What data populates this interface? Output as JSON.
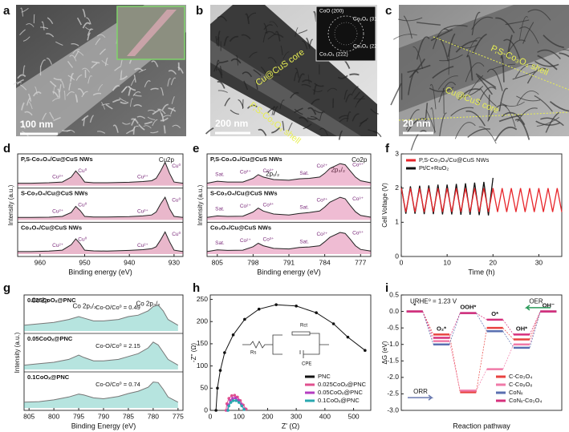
{
  "panels": [
    {
      "label": "a",
      "scale_bar": "100 nm"
    },
    {
      "label": "b",
      "scale_bar": "200 nm",
      "annotations": [
        "Cu@CuS core",
        "P,S-Co₃O₄ shell"
      ],
      "saed": [
        "CoO (200)",
        "Co₃O₄ (311)",
        "Co₃O₄ (220)",
        "Co₃O₄ (222)"
      ]
    },
    {
      "label": "c",
      "scale_bar": "20 nm",
      "annotations": [
        "P,S-Co₃O₄ shell",
        "Cu@CuS core"
      ]
    }
  ],
  "chart_data": [
    {
      "type": "spectra",
      "label": "d",
      "xlabel": "Binding energy (eV)",
      "ylabel": "Intensity (a.u.)",
      "xlim": [
        965,
        928
      ],
      "xticks": [
        960,
        950,
        940,
        930
      ],
      "ylim": [
        0,
        1
      ],
      "line_color": "#222222",
      "annotations": [
        "Cu2p"
      ],
      "x": [
        965,
        962,
        958,
        955,
        953,
        952,
        951,
        950,
        948,
        945,
        940,
        937,
        935,
        934,
        933,
        932,
        931,
        930,
        928
      ],
      "series": [
        {
          "name": "P,S-Co₃O₄/Cu@CuS NWs",
          "color": "#c0306a",
          "labels": [
            "Cu²⁺",
            "Cu⁰",
            "Cu²⁺",
            "Cu⁰"
          ],
          "values": [
            0.1,
            0.1,
            0.12,
            0.15,
            0.35,
            0.6,
            0.4,
            0.15,
            0.12,
            0.12,
            0.14,
            0.17,
            0.2,
            0.3,
            0.6,
            0.95,
            0.5,
            0.15,
            0.1
          ]
        },
        {
          "name": "S-Co₃O₄/Cu@CuS NWs",
          "color": "#c0306a",
          "labels": [
            "Cu²⁺",
            "Cu⁰",
            "Cu²⁺",
            "Cu⁰"
          ],
          "values": [
            0.1,
            0.1,
            0.11,
            0.14,
            0.3,
            0.55,
            0.38,
            0.14,
            0.12,
            0.12,
            0.13,
            0.16,
            0.2,
            0.32,
            0.65,
            0.92,
            0.45,
            0.14,
            0.1
          ]
        },
        {
          "name": "Co₃O₄/Cu@CuS NWs",
          "color": "#c0306a",
          "labels": [
            "Cu²⁺",
            "Cu⁰",
            "Cu²⁺",
            "Cu⁰"
          ],
          "values": [
            0.1,
            0.1,
            0.12,
            0.16,
            0.38,
            0.62,
            0.42,
            0.16,
            0.13,
            0.12,
            0.15,
            0.18,
            0.22,
            0.3,
            0.58,
            0.9,
            0.5,
            0.16,
            0.1
          ]
        }
      ]
    },
    {
      "type": "spectra",
      "label": "e",
      "xlabel": "Binding energy (eV)",
      "ylabel": "Intensity (a.u.)",
      "xlim": [
        807,
        775
      ],
      "xticks": [
        805,
        798,
        791,
        784,
        777
      ],
      "ylim": [
        0,
        1
      ],
      "line_color": "#222222",
      "annotations": [
        "Co2p",
        "2p₁/₂",
        "2p₃/₂"
      ],
      "x": [
        807,
        805,
        803,
        800,
        798,
        797,
        796,
        794,
        791,
        789,
        787,
        785,
        784,
        783,
        781,
        780,
        779,
        778,
        777,
        775
      ],
      "series": [
        {
          "name": "P,S-Co₃O₄/Cu@CuS NWs",
          "color": "#d04080",
          "labels": [
            "Sat.",
            "Co²⁺",
            "Co³⁺",
            "Sat.",
            "Co²⁺",
            "Co³⁺"
          ],
          "values": [
            0.1,
            0.18,
            0.15,
            0.15,
            0.3,
            0.45,
            0.35,
            0.25,
            0.22,
            0.28,
            0.3,
            0.35,
            0.5,
            0.7,
            0.9,
            0.85,
            0.6,
            0.35,
            0.2,
            0.12
          ]
        },
        {
          "name": "S-Co₃O₄/Cu@CuS NWs",
          "color": "#d04080",
          "labels": [
            "Sat.",
            "Co²⁺",
            "Co³⁺",
            "Sat.",
            "Co²⁺",
            "Co³⁺"
          ],
          "values": [
            0.1,
            0.16,
            0.14,
            0.15,
            0.32,
            0.48,
            0.36,
            0.24,
            0.2,
            0.26,
            0.3,
            0.36,
            0.52,
            0.72,
            0.92,
            0.86,
            0.58,
            0.33,
            0.18,
            0.11
          ]
        },
        {
          "name": "Co₃O₄/Cu@CuS NWs",
          "color": "#d04080",
          "labels": [
            "Sat.",
            "Co²⁺",
            "Co³⁺",
            "Sat.",
            "Co²⁺",
            "Co³⁺"
          ],
          "values": [
            0.1,
            0.17,
            0.15,
            0.16,
            0.3,
            0.44,
            0.34,
            0.23,
            0.21,
            0.27,
            0.29,
            0.34,
            0.5,
            0.68,
            0.88,
            0.84,
            0.6,
            0.34,
            0.19,
            0.12
          ]
        }
      ]
    },
    {
      "type": "line",
      "label": "f",
      "xlabel": "Time (h)",
      "ylabel": "Cell Voltage (V)",
      "xlim": [
        0,
        35
      ],
      "xticks": [
        0,
        10,
        20,
        30
      ],
      "ylim": [
        0,
        3
      ],
      "yticks": [
        0,
        1,
        2,
        3
      ],
      "legend": "upper left",
      "x": [
        0,
        1,
        2,
        3,
        4,
        5,
        6,
        7,
        8,
        9,
        10,
        11,
        12,
        13,
        14,
        15,
        16,
        17,
        18,
        19,
        20,
        21,
        22,
        23,
        24,
        25,
        26,
        27,
        28,
        29,
        30,
        31,
        32,
        33,
        34,
        35
      ],
      "series": [
        {
          "name": "P,S-Co₃O₄/Cu@CuS NWs",
          "color": "#e8262b",
          "values": [
            2,
            1.3,
            2,
            1.3,
            2,
            1.3,
            2,
            1.3,
            2,
            1.3,
            2,
            1.3,
            2,
            1.3,
            2,
            1.3,
            2,
            1.3,
            2,
            1.3,
            2,
            1.3,
            2,
            1.3,
            2,
            1.3,
            2,
            1.3,
            2,
            1.3,
            2,
            1.3,
            2,
            1.3,
            2,
            1.3
          ]
        },
        {
          "name": "Pt/C+RuO₂",
          "color": "#111111",
          "values": [
            2.05,
            1.25,
            2.05,
            1.25,
            2.07,
            1.24,
            2.08,
            1.24,
            2.1,
            1.23,
            2.1,
            1.23,
            2.12,
            1.22,
            2.14,
            1.22,
            2.16,
            1.21,
            2.18,
            1.2,
            2.3,
            null,
            null,
            null,
            null,
            null,
            null,
            null,
            null,
            null,
            null,
            null,
            null,
            null,
            null,
            null
          ]
        }
      ]
    },
    {
      "type": "spectra",
      "label": "g",
      "xlabel": "Binding Energy (eV)",
      "ylabel": "Intensity (a.u.)",
      "xlim": [
        806,
        774
      ],
      "xticks": [
        805,
        800,
        795,
        790,
        785,
        780,
        775
      ],
      "ylim": [
        0,
        1
      ],
      "line_color": "#777777",
      "annotations": [
        "Co 2p",
        "Co 2p₁/₂",
        "Co 2p₃/₂"
      ],
      "x": [
        806,
        803,
        800,
        797,
        795,
        794,
        792,
        790,
        787,
        785,
        783,
        781,
        780,
        779,
        778,
        777,
        775
      ],
      "series": [
        {
          "name": "0.025CoOₓ@PNC",
          "color": "#2fb3a3",
          "ratio": "Co-O/Co⁰ = 0.49",
          "values": [
            0.2,
            0.25,
            0.3,
            0.4,
            0.5,
            0.45,
            0.35,
            0.35,
            0.4,
            0.5,
            0.55,
            0.7,
            0.85,
            0.9,
            0.7,
            0.4,
            0.2
          ]
        },
        {
          "name": "0.05CoOₓ@PNC",
          "color": "#2fb3a3",
          "ratio": "Co-O/Co⁰ = 2.15",
          "values": [
            0.15,
            0.2,
            0.25,
            0.35,
            0.5,
            0.42,
            0.3,
            0.3,
            0.35,
            0.45,
            0.55,
            0.75,
            0.95,
            0.85,
            0.6,
            0.35,
            0.15
          ]
        },
        {
          "name": "0.1CoOₓ@PNC",
          "color": "#2fb3a3",
          "ratio": "Co-O/Co⁰ = 0.74",
          "values": [
            0.2,
            0.22,
            0.28,
            0.38,
            0.48,
            0.45,
            0.35,
            0.32,
            0.4,
            0.5,
            0.58,
            0.72,
            0.9,
            0.88,
            0.65,
            0.38,
            0.2
          ]
        }
      ]
    },
    {
      "type": "nyquist",
      "label": "h",
      "xlabel": "Z' (Ω)",
      "ylabel": "-Z'' (Ω)",
      "xlim": [
        0,
        560
      ],
      "xticks": [
        0,
        100,
        200,
        300,
        400,
        500
      ],
      "ylim": [
        0,
        260
      ],
      "yticks": [
        0,
        50,
        100,
        150,
        200,
        250
      ],
      "legend": "lower right",
      "markers": true,
      "circuit": [
        "Rs",
        "Rct",
        "CPE"
      ],
      "series": [
        {
          "name": "PNC",
          "color": "#111111",
          "x": [
            20,
            25,
            35,
            50,
            80,
            120,
            170,
            230,
            300,
            370,
            430,
            480,
            540
          ],
          "values": [
            0,
            50,
            90,
            130,
            170,
            205,
            228,
            238,
            235,
            220,
            195,
            165,
            135
          ]
        },
        {
          "name": "0.025CoOₓ@PNC",
          "color": "#e0508f",
          "x": [
            55,
            58,
            65,
            75,
            85,
            95,
            105,
            115,
            125
          ],
          "values": [
            0,
            15,
            27,
            33,
            34,
            30,
            22,
            12,
            3
          ]
        },
        {
          "name": "0.05CoOₓ@PNC",
          "color": "#b43cc0",
          "x": [
            60,
            63,
            70,
            78,
            88,
            98,
            108,
            118
          ],
          "values": [
            0,
            12,
            22,
            27,
            28,
            23,
            14,
            3
          ]
        },
        {
          "name": "0.1CoOₓ@PNC",
          "color": "#2aa8b0",
          "x": [
            62,
            65,
            72,
            80,
            90,
            100,
            110,
            118
          ],
          "values": [
            0,
            10,
            18,
            22,
            22,
            18,
            10,
            2
          ]
        }
      ]
    },
    {
      "type": "step",
      "label": "i",
      "xlabel": "Reaction pathway",
      "ylabel": "ΔG (eV)",
      "ylim": [
        -3.0,
        0.5
      ],
      "yticks": [
        0.5,
        {
          "value": 0,
          "label": "0.0"
        },
        -0.5,
        {
          "value": -1,
          "label": "-1.0"
        },
        -1.5,
        {
          "value": -2,
          "label": "-2.0"
        },
        -2.5,
        {
          "value": -3,
          "label": "-3.0"
        }
      ],
      "legend": "lower right",
      "annotations": [
        "URHE⁰ = 1.23 V",
        "OER",
        "ORR"
      ],
      "categories": [
        "*",
        "O₂*",
        "OOH*",
        "O*",
        "OH*",
        "OH⁻"
      ],
      "series": [
        {
          "name": "C-Co₃O₄",
          "color": "#e8423f",
          "values": [
            0,
            -0.7,
            -2.45,
            -0.5,
            -0.85,
            0
          ]
        },
        {
          "name": "C-Co₉O₈",
          "color": "#f07aa8",
          "values": [
            0,
            -0.9,
            -2.4,
            -1.75,
            -1.0,
            0
          ]
        },
        {
          "name": "CoNₓ",
          "color": "#5a6fb0",
          "values": [
            0,
            -1.0,
            -0.05,
            -0.6,
            -1.1,
            0
          ]
        },
        {
          "name": "CoNₓ-Co₃O₄",
          "color": "#d6307c",
          "values": [
            0,
            -0.8,
            -0.05,
            -0.25,
            -0.7,
            0
          ]
        }
      ]
    }
  ]
}
